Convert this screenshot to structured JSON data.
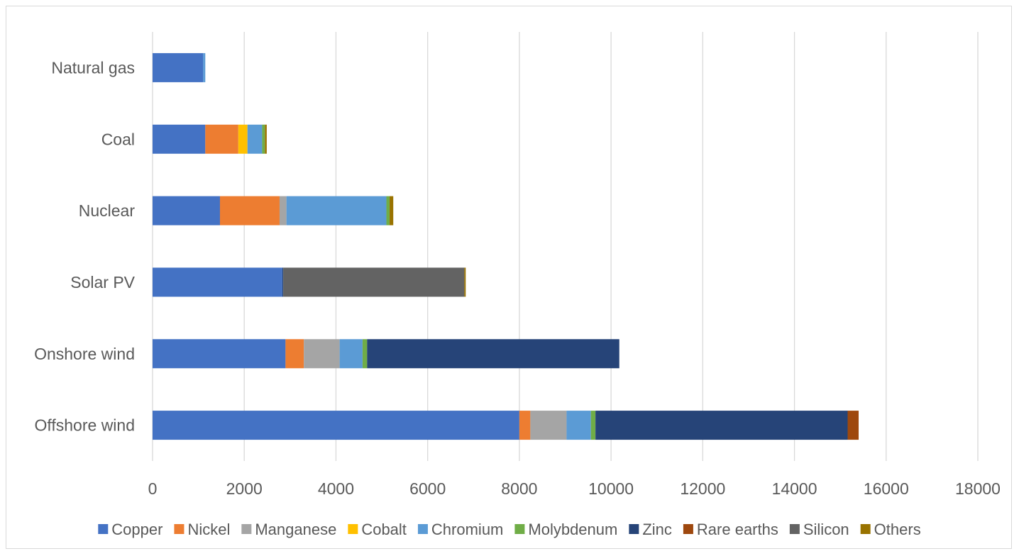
{
  "chart_data": {
    "type": "bar",
    "orientation": "horizontal",
    "stacked": true,
    "categories": [
      "Offshore wind",
      "Onshore wind",
      "Solar PV",
      "Nuclear",
      "Coal",
      "Natural gas"
    ],
    "xlim": [
      0,
      18000
    ],
    "xticks": [
      0,
      2000,
      4000,
      6000,
      8000,
      10000,
      12000,
      14000,
      16000,
      18000
    ],
    "xtick_labels": [
      "0",
      "2000",
      "4000",
      "6000",
      "8000",
      "10000",
      "12000",
      "14000",
      "16000",
      "18000"
    ],
    "grid": "vertical",
    "legend_position": "bottom",
    "series": [
      {
        "name": "Copper",
        "color": "#4472C4",
        "values": [
          8000,
          2900,
          2830,
          1470,
          1150,
          1100
        ]
      },
      {
        "name": "Nickel",
        "color": "#ED7D31",
        "values": [
          240,
          400,
          0,
          1300,
          720,
          0
        ]
      },
      {
        "name": "Manganese",
        "color": "#A5A5A5",
        "values": [
          790,
          780,
          0,
          150,
          0,
          0
        ]
      },
      {
        "name": "Cobalt",
        "color": "#FFC000",
        "values": [
          0,
          0,
          0,
          0,
          200,
          0
        ]
      },
      {
        "name": "Chromium",
        "color": "#5B9BD5",
        "values": [
          530,
          500,
          0,
          2180,
          320,
          50
        ]
      },
      {
        "name": "Molybdenum",
        "color": "#70AD47",
        "values": [
          100,
          100,
          0,
          70,
          60,
          0
        ]
      },
      {
        "name": "Zinc",
        "color": "#264478",
        "values": [
          5500,
          5500,
          20,
          0,
          0,
          0
        ]
      },
      {
        "name": "Rare earths",
        "color": "#9E480E",
        "values": [
          240,
          0,
          0,
          0,
          0,
          0
        ]
      },
      {
        "name": "Silicon",
        "color": "#636363",
        "values": [
          0,
          0,
          3950,
          0,
          0,
          0
        ]
      },
      {
        "name": "Others",
        "color": "#997300",
        "values": [
          0,
          0,
          30,
          80,
          40,
          0
        ]
      }
    ]
  }
}
